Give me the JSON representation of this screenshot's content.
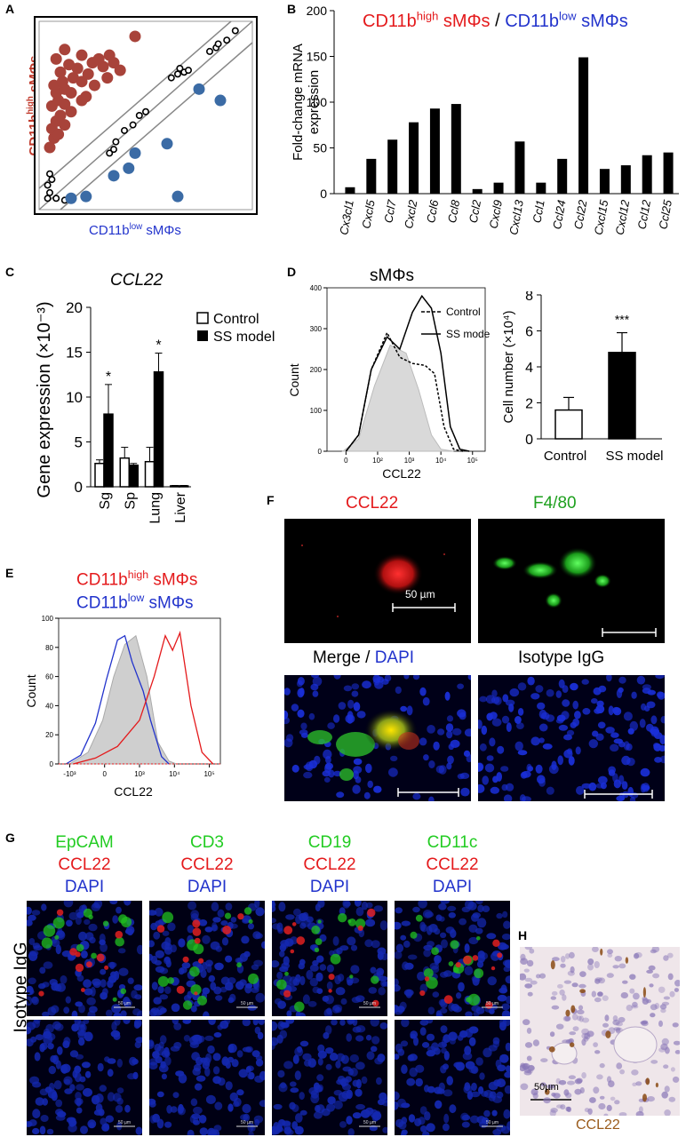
{
  "letters": {
    "A": "A",
    "B": "B",
    "C": "C",
    "D": "D",
    "E": "E",
    "F": "F",
    "G": "G",
    "H": "H"
  },
  "panelA": {
    "ylabel_main": "CD11b",
    "ylabel_sup": "high",
    "ylabel_tail": " sMΦs",
    "xlabel_main": "CD11b",
    "xlabel_sup": "low",
    "xlabel_tail": " sMΦs"
  },
  "panelB": {
    "title_red_main": "CD11b",
    "title_red_sup": "high",
    "title_red_tail": " sMΦs",
    "title_sep": " / ",
    "title_blue_main": "CD11b",
    "title_blue_sup": "low",
    "title_blue_tail": " sMΦs",
    "ylabel1": "Fold-change mRNA",
    "ylabel2": "expression"
  },
  "panelC": {
    "title": "CCL22",
    "ylabel": "Gene expression (×10⁻³)",
    "legend_control": "Control",
    "legend_ss": "SS model"
  },
  "panelD": {
    "title": "sMΦs",
    "hist_ylabel": "Count",
    "hist_xlabel": "CCL22",
    "legend_control": "Control",
    "legend_ss": "SS model",
    "bar_ylabel": "Cell number (×10⁴)",
    "sig": "***"
  },
  "panelE": {
    "legend_red_main": "CD11b",
    "legend_red_sup": "high",
    "legend_red_tail": " sMΦs",
    "legend_blue_main": "CD11b",
    "legend_blue_sup": "low",
    "legend_blue_tail": " sMΦs",
    "ylabel": "Count",
    "xlabel": "CCL22"
  },
  "panelF": {
    "ccl22": "CCL22",
    "f480": "F4/80",
    "merge": "Merge / ",
    "dapi": "DAPI",
    "isotype": "Isotype IgG",
    "scale": "50 µm"
  },
  "panelG": {
    "columns": [
      {
        "marker": "EpCAM",
        "ccl22": "CCL22",
        "dapi": "DAPI"
      },
      {
        "marker": "CD3",
        "ccl22": "CCL22",
        "dapi": "DAPI"
      },
      {
        "marker": "CD19",
        "ccl22": "CCL22",
        "dapi": "DAPI"
      },
      {
        "marker": "CD11c",
        "ccl22": "CCL22",
        "dapi": "DAPI"
      }
    ],
    "isotype": "Isotype IgG",
    "scale": "50 µm"
  },
  "panelH": {
    "scale": "50µm",
    "label": "CCL22"
  },
  "chart_data": [
    {
      "type": "scatter",
      "title": "",
      "xlabel": "CD11blow sMΦs",
      "ylabel": "CD11bhigh sMΦs",
      "series": [
        {
          "name": "",
          "color": "#a8433a",
          "points": [
            [
              0.05,
              0.33
            ],
            [
              0.07,
              0.38
            ],
            [
              0.06,
              0.43
            ],
            [
              0.08,
              0.47
            ],
            [
              0.1,
              0.5
            ],
            [
              0.06,
              0.55
            ],
            [
              0.09,
              0.58
            ],
            [
              0.12,
              0.56
            ],
            [
              0.08,
              0.62
            ],
            [
              0.12,
              0.64
            ],
            [
              0.15,
              0.62
            ],
            [
              0.07,
              0.66
            ],
            [
              0.11,
              0.68
            ],
            [
              0.16,
              0.7
            ],
            [
              0.2,
              0.68
            ],
            [
              0.23,
              0.72
            ],
            [
              0.18,
              0.75
            ],
            [
              0.1,
              0.73
            ],
            [
              0.14,
              0.77
            ],
            [
              0.25,
              0.78
            ],
            [
              0.3,
              0.76
            ],
            [
              0.28,
              0.8
            ],
            [
              0.33,
              0.82
            ],
            [
              0.2,
              0.82
            ],
            [
              0.35,
              0.78
            ],
            [
              0.12,
              0.85
            ],
            [
              0.08,
              0.8
            ],
            [
              0.38,
              0.74
            ],
            [
              0.26,
              0.66
            ],
            [
              0.15,
              0.52
            ],
            [
              0.2,
              0.58
            ],
            [
              0.45,
              0.92
            ],
            [
              0.09,
              0.4
            ],
            [
              0.22,
              0.6
            ],
            [
              0.32,
              0.7
            ],
            [
              0.12,
              0.45
            ]
          ]
        },
        {
          "name": "",
          "color": "#ffffff",
          "points": [
            [
              0.04,
              0.06
            ],
            [
              0.05,
              0.09
            ],
            [
              0.04,
              0.13
            ],
            [
              0.06,
              0.16
            ],
            [
              0.05,
              0.19
            ],
            [
              0.08,
              0.06
            ],
            [
              0.12,
              0.05
            ],
            [
              0.35,
              0.32
            ],
            [
              0.33,
              0.3
            ],
            [
              0.36,
              0.36
            ],
            [
              0.4,
              0.42
            ],
            [
              0.44,
              0.45
            ],
            [
              0.47,
              0.5
            ],
            [
              0.5,
              0.52
            ],
            [
              0.62,
              0.7
            ],
            [
              0.65,
              0.72
            ],
            [
              0.68,
              0.73
            ],
            [
              0.66,
              0.75
            ],
            [
              0.7,
              0.74
            ],
            [
              0.8,
              0.84
            ],
            [
              0.83,
              0.86
            ],
            [
              0.84,
              0.88
            ],
            [
              0.88,
              0.9
            ],
            [
              0.92,
              0.95
            ]
          ]
        },
        {
          "name": "",
          "color": "#3b6ba5",
          "points": [
            [
              0.15,
              0.06
            ],
            [
              0.22,
              0.07
            ],
            [
              0.35,
              0.18
            ],
            [
              0.42,
              0.22
            ],
            [
              0.45,
              0.3
            ],
            [
              0.6,
              0.35
            ],
            [
              0.75,
              0.64
            ],
            [
              0.85,
              0.58
            ],
            [
              0.65,
              0.07
            ]
          ]
        }
      ]
    },
    {
      "type": "bar",
      "title": "CD11bhigh sMΦs / CD11blow sMΦs",
      "xlabel": "",
      "ylabel": "Fold-change mRNA expression",
      "ylim": [
        0,
        200
      ],
      "yticks": [
        0,
        50,
        100,
        150,
        200
      ],
      "categories": [
        "Cx3cl1",
        "Cxcl5",
        "Ccl7",
        "Cxcl2",
        "Ccl6",
        "Ccl8",
        "Ccl2",
        "Cxcl9",
        "Cxcl13",
        "Ccl1",
        "Ccl24",
        "Ccl22",
        "Cxcl15",
        "Cxcl12",
        "Ccl12",
        "Ccl25"
      ],
      "values": [
        7,
        38,
        59,
        78,
        93,
        98,
        5,
        12,
        57,
        12,
        38,
        149,
        27,
        31,
        42,
        45
      ]
    },
    {
      "type": "bar",
      "title": "CCL22",
      "xlabel": "",
      "ylabel": "Gene expression (×10⁻³)",
      "ylim": [
        0,
        20
      ],
      "yticks": [
        0,
        5,
        10,
        15,
        20
      ],
      "categories": [
        "Sg",
        "Sp",
        "Lung",
        "Liver"
      ],
      "series": [
        {
          "name": "Control",
          "values": [
            2.6,
            3.2,
            2.8,
            0.1
          ],
          "errors": [
            0.4,
            1.2,
            1.6,
            0.05
          ]
        },
        {
          "name": "SS model",
          "values": [
            8.1,
            2.4,
            12.8,
            0.1
          ],
          "errors": [
            3.3,
            0.2,
            2.1,
            0.05
          ]
        }
      ],
      "significance": [
        "*",
        "",
        "*",
        ""
      ]
    },
    {
      "type": "line",
      "title": "sMΦs",
      "xlabel": "CCL22",
      "ylabel": "Count",
      "yticks": [
        0,
        100,
        200,
        300,
        400
      ],
      "ylim": [
        0,
        400
      ],
      "xticklabels": [
        "0",
        "10²",
        "10³",
        "10⁴",
        "10⁵"
      ],
      "series": [
        {
          "name": "isotype",
          "points": [
            [
              0.5,
              0
            ],
            [
              1.0,
              30
            ],
            [
              1.5,
              160
            ],
            [
              2.0,
              260
            ],
            [
              2.5,
              240
            ],
            [
              2.9,
              150
            ],
            [
              3.3,
              40
            ],
            [
              3.6,
              5
            ],
            [
              4.0,
              0
            ]
          ]
        },
        {
          "name": "Control",
          "points": [
            [
              0.6,
              0
            ],
            [
              1.0,
              40
            ],
            [
              1.4,
              200
            ],
            [
              1.9,
              290
            ],
            [
              2.3,
              230
            ],
            [
              2.7,
              215
            ],
            [
              3.1,
              210
            ],
            [
              3.4,
              190
            ],
            [
              3.7,
              60
            ],
            [
              4.0,
              5
            ],
            [
              4.3,
              0
            ]
          ]
        },
        {
          "name": "SS model",
          "points": [
            [
              0.6,
              0
            ],
            [
              1.0,
              40
            ],
            [
              1.4,
              200
            ],
            [
              1.9,
              280
            ],
            [
              2.3,
              250
            ],
            [
              2.7,
              340
            ],
            [
              3.0,
              380
            ],
            [
              3.3,
              350
            ],
            [
              3.6,
              240
            ],
            [
              3.9,
              60
            ],
            [
              4.2,
              5
            ],
            [
              4.5,
              0
            ]
          ]
        }
      ]
    },
    {
      "type": "bar",
      "title": "",
      "xlabel": "",
      "ylabel": "Cell number (×10⁴)",
      "ylim": [
        0,
        8
      ],
      "yticks": [
        0,
        2,
        4,
        6,
        8
      ],
      "categories": [
        "Control",
        "SS model"
      ],
      "values": [
        1.6,
        4.8
      ],
      "errors": [
        0.7,
        1.1
      ],
      "significance": [
        "",
        "***"
      ]
    },
    {
      "type": "line",
      "title": "",
      "xlabel": "CCL22",
      "ylabel": "Count",
      "yticks": [
        0,
        20,
        40,
        60,
        80,
        100
      ],
      "ylim": [
        0,
        100
      ],
      "xticklabels": [
        "-10³",
        "0",
        "10³",
        "10⁴",
        "10⁵"
      ],
      "series": [
        {
          "name": "isotype",
          "points": [
            [
              0.3,
              0
            ],
            [
              0.8,
              8
            ],
            [
              1.2,
              30
            ],
            [
              1.5,
              60
            ],
            [
              1.8,
              82
            ],
            [
              2.1,
              88
            ],
            [
              2.4,
              60
            ],
            [
              2.7,
              15
            ],
            [
              3.0,
              2
            ],
            [
              3.2,
              0
            ]
          ]
        },
        {
          "name": "CD11blow sMΦs",
          "points": [
            [
              0.2,
              0
            ],
            [
              0.6,
              6
            ],
            [
              1.0,
              28
            ],
            [
              1.3,
              58
            ],
            [
              1.6,
              85
            ],
            [
              1.8,
              88
            ],
            [
              2.0,
              70
            ],
            [
              2.3,
              50
            ],
            [
              2.5,
              30
            ],
            [
              2.8,
              5
            ],
            [
              3.0,
              0
            ]
          ]
        },
        {
          "name": "CD11bhigh sMΦs",
          "points": [
            [
              0.4,
              0
            ],
            [
              1.0,
              4
            ],
            [
              1.6,
              12
            ],
            [
              2.2,
              30
            ],
            [
              2.6,
              60
            ],
            [
              2.9,
              88
            ],
            [
              3.1,
              78
            ],
            [
              3.3,
              90
            ],
            [
              3.6,
              40
            ],
            [
              3.9,
              8
            ],
            [
              4.2,
              0
            ]
          ]
        }
      ]
    }
  ]
}
